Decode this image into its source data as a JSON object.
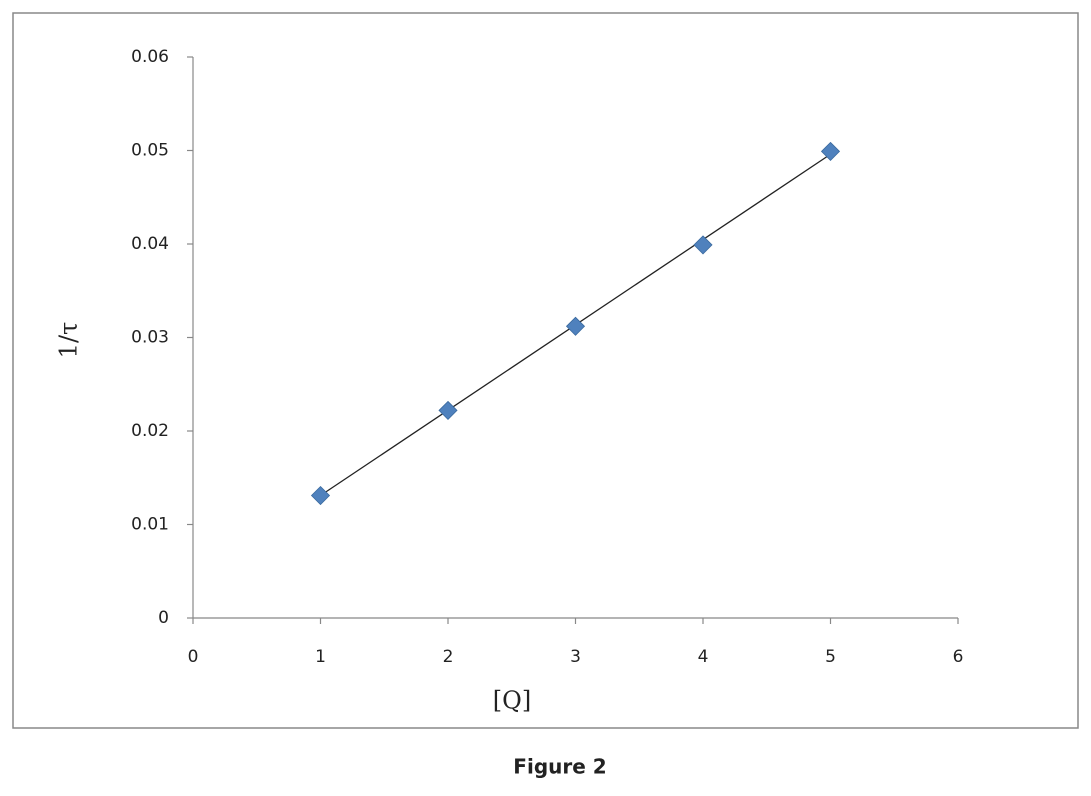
{
  "chart_data": {
    "type": "scatter",
    "x_label": "[Q]",
    "y_label": "1/τ",
    "caption": "Figure 2",
    "series": [
      {
        "color": "#4f81bd",
        "x": [
          1,
          2,
          3,
          4,
          5
        ],
        "values": [
          0.0131,
          0.0222,
          0.0312,
          0.0399,
          0.0499
        ]
      }
    ],
    "trendline": {
      "color": "#222222",
      "x": [
        1,
        5
      ],
      "values": [
        0.0131,
        0.0496
      ]
    },
    "xlim": [
      0,
      6
    ],
    "xticks": [
      0,
      1,
      2,
      3,
      4,
      5,
      6
    ],
    "ylim": [
      0,
      0.06
    ],
    "yticks": [
      0,
      0.01,
      0.02,
      0.03,
      0.04,
      0.05,
      0.06
    ],
    "grid": false
  }
}
